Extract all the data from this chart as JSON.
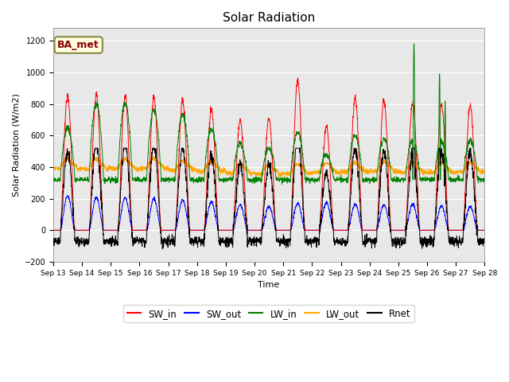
{
  "title": "Solar Radiation",
  "xlabel": "Time",
  "ylabel": "Solar Radiation (W/m2)",
  "ylim": [
    -200,
    1280
  ],
  "yticks": [
    -200,
    0,
    200,
    400,
    600,
    800,
    1000,
    1200
  ],
  "label_BA_met": "BA_met",
  "colors": {
    "SW_in": "red",
    "SW_out": "blue",
    "LW_in": "green",
    "LW_out": "orange",
    "Rnet": "black"
  },
  "legend_labels": [
    "SW_in",
    "SW_out",
    "LW_in",
    "LW_out",
    "Rnet"
  ],
  "xtick_labels": [
    "Sep 13",
    "Sep 14",
    "Sep 15",
    "Sep 16",
    "Sep 17",
    "Sep 18",
    "Sep 19",
    "Sep 20",
    "Sep 21",
    "Sep 22",
    "Sep 23",
    "Sep 24",
    "Sep 25",
    "Sep 26",
    "Sep 27",
    "Sep 28"
  ],
  "days": 15,
  "points_per_day": 144,
  "background_color": "#e8e8e8"
}
